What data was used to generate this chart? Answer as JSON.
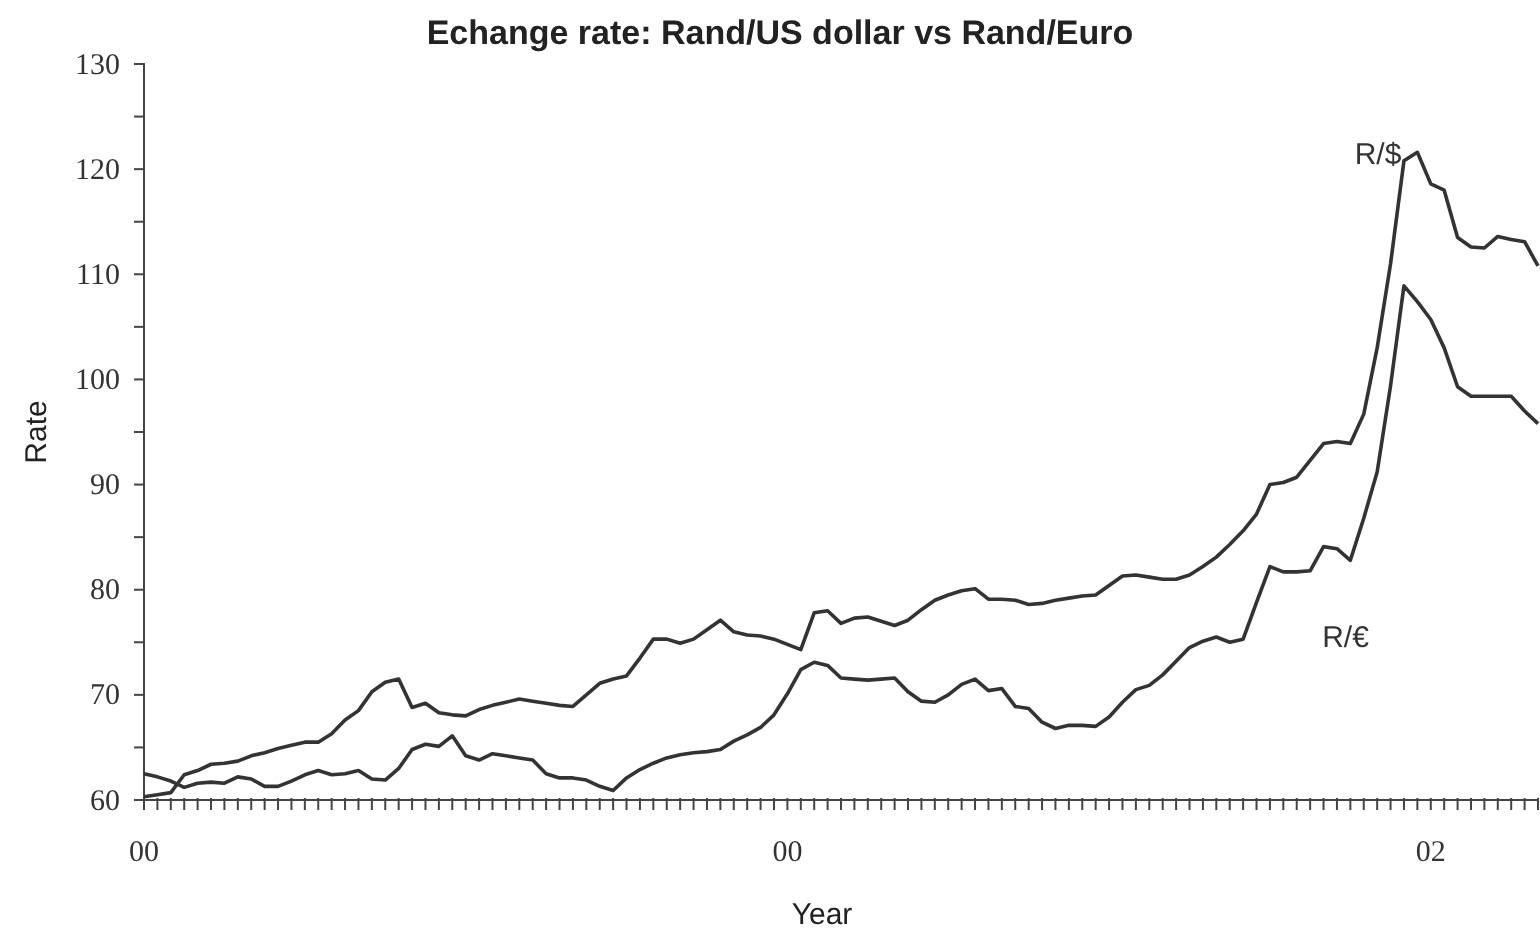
{
  "chart_data": {
    "type": "line",
    "title": "Echange rate: Rand/US dollar vs Rand/Euro",
    "xlabel": "Year",
    "ylabel": "Rate",
    "categories": [
      "00",
      null,
      null,
      null,
      null,
      null,
      null,
      null,
      null,
      null,
      null,
      null,
      null,
      null,
      null,
      null,
      null,
      null,
      null,
      null,
      null,
      null,
      null,
      null,
      null,
      null,
      null,
      null,
      null,
      null,
      null,
      null,
      null,
      null,
      null,
      null,
      null,
      null,
      null,
      null,
      null,
      null,
      null,
      null,
      null,
      null,
      null,
      null,
      "00",
      null,
      null,
      null,
      null,
      null,
      null,
      null,
      null,
      null,
      null,
      null,
      null,
      null,
      null,
      null,
      null,
      null,
      null,
      null,
      null,
      null,
      null,
      null,
      null,
      null,
      null,
      null,
      null,
      null,
      null,
      null,
      null,
      null,
      null,
      null,
      null,
      null,
      null,
      null,
      null,
      null,
      null,
      null,
      null,
      null,
      null,
      null,
      "02",
      null,
      null,
      null,
      null,
      null,
      null,
      null,
      null
    ],
    "ylim": [
      60,
      130
    ],
    "yticks": [
      60,
      {
        "value": 65,
        "label": null
      },
      70,
      {
        "value": 75,
        "label": null
      },
      80,
      {
        "value": 85,
        "label": null
      },
      90,
      {
        "value": 95,
        "label": null
      },
      100,
      {
        "value": 105,
        "label": null
      },
      110,
      {
        "value": 115,
        "label": null
      },
      120,
      {
        "value": 125,
        "label": null
      },
      130
    ],
    "grid": false,
    "legend": false,
    "marker": "none",
    "line_style": "solid",
    "series": [
      {
        "name": "R/$",
        "color": "#333333",
        "values": [
          60.3,
          60.5,
          60.7,
          62.4,
          62.8,
          63.4,
          63.5,
          63.7,
          64.2,
          64.5,
          64.9,
          65.2,
          65.5,
          65.5,
          66.3,
          67.6,
          68.5,
          70.3,
          71.2,
          71.5,
          68.8,
          69.2,
          68.3,
          68.1,
          68,
          68.6,
          69,
          69.3,
          69.6,
          69.4,
          69.2,
          69,
          68.9,
          70,
          71.1,
          71.5,
          71.8,
          73.5,
          75.3,
          75.3,
          74.9,
          75.3,
          76.2,
          77.1,
          76,
          75.7,
          75.6,
          75.3,
          74.8,
          74.3,
          77.8,
          78,
          76.8,
          77.3,
          77.4,
          77,
          76.6,
          77.1,
          78.1,
          79,
          79.5,
          79.9,
          80.1,
          79.1,
          79.1,
          79,
          78.6,
          78.7,
          79,
          79.2,
          79.4,
          79.5,
          80.4,
          81.3,
          81.4,
          81.2,
          81,
          81,
          81.4,
          82.2,
          83.1,
          84.3,
          85.6,
          87.2,
          90,
          90.2,
          90.7,
          92.3,
          93.9,
          94.1,
          93.9,
          96.7,
          103,
          111,
          120.8,
          121.6,
          118.6,
          118,
          113.5,
          112.6,
          112.5,
          113.6,
          113.3,
          113.1,
          110.8
        ]
      },
      {
        "name": "R/€",
        "color": "#333333",
        "values": [
          62.5,
          62.2,
          61.8,
          61.2,
          61.6,
          61.7,
          61.6,
          62.2,
          62,
          61.3,
          61.3,
          61.8,
          62.4,
          62.8,
          62.4,
          62.5,
          62.8,
          62,
          61.9,
          63,
          64.8,
          65.3,
          65.1,
          66.1,
          64.2,
          63.8,
          64.4,
          64.2,
          64,
          63.8,
          62.5,
          62.1,
          62.1,
          61.9,
          61.3,
          60.9,
          62.1,
          62.9,
          63.5,
          64,
          64.3,
          64.5,
          64.6,
          64.8,
          65.6,
          66.2,
          66.9,
          68.1,
          70.1,
          72.4,
          73.1,
          72.8,
          71.6,
          71.5,
          71.4,
          71.5,
          71.6,
          70.3,
          69.4,
          69.3,
          70,
          71,
          71.5,
          70.4,
          70.6,
          68.9,
          68.7,
          67.4,
          66.8,
          67.1,
          67.1,
          67,
          67.9,
          69.3,
          70.5,
          70.9,
          71.9,
          73.2,
          74.5,
          75.1,
          75.5,
          75,
          75.3,
          78.8,
          82.2,
          81.7,
          81.7,
          81.8,
          84.1,
          83.9,
          82.8,
          86.8,
          91.2,
          99.4,
          108.9,
          107.4,
          105.7,
          103,
          99.3,
          98.4,
          98.4,
          98.4,
          98.4,
          97,
          95.8
        ]
      }
    ]
  }
}
